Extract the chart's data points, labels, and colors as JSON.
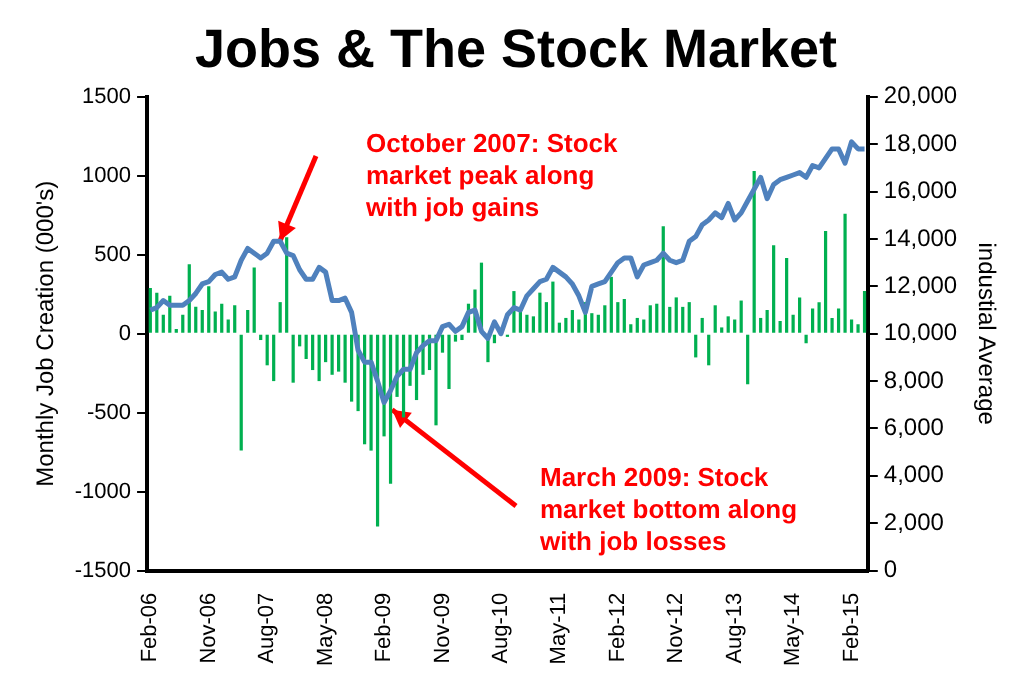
{
  "chart_data": {
    "type": "bar",
    "title": "Jobs & The Stock Market",
    "ylabel": "Monthly Job Creation (000's)",
    "y2label": "industial Average",
    "categories": [
      "Feb-06",
      null,
      null,
      null,
      null,
      null,
      null,
      null,
      null,
      "Nov-06",
      null,
      null,
      null,
      null,
      null,
      null,
      null,
      null,
      "Aug-07",
      null,
      null,
      null,
      null,
      null,
      null,
      null,
      null,
      "May-08",
      null,
      null,
      null,
      null,
      null,
      null,
      null,
      null,
      "Feb-09",
      null,
      null,
      null,
      null,
      null,
      null,
      null,
      null,
      "Nov-09",
      null,
      null,
      null,
      null,
      null,
      null,
      null,
      null,
      "Aug-10",
      null,
      null,
      null,
      null,
      null,
      null,
      null,
      null,
      "May-11",
      null,
      null,
      null,
      null,
      null,
      null,
      null,
      null,
      "Feb-12",
      null,
      null,
      null,
      null,
      null,
      null,
      null,
      null,
      "Nov-12",
      null,
      null,
      null,
      null,
      null,
      null,
      null,
      null,
      "Aug-13",
      null,
      null,
      null,
      null,
      null,
      null,
      null,
      null,
      "May-14",
      null,
      null,
      null,
      null,
      null,
      null,
      null,
      null,
      "Feb-15",
      null,
      null
    ],
    "series": [
      {
        "color": "#00b050",
        "values": [
          290,
          260,
          120,
          240,
          30,
          120,
          440,
          170,
          150,
          300,
          140,
          190,
          90,
          180,
          -740,
          150,
          420,
          -40,
          -200,
          -300,
          200,
          610,
          -310,
          -80,
          -160,
          -230,
          -300,
          -180,
          -260,
          -240,
          -310,
          -430,
          -490,
          -700,
          -740,
          -1220,
          -650,
          -950,
          -400,
          -530,
          -330,
          -420,
          -260,
          -230,
          -580,
          -120,
          -350,
          -50,
          -40,
          190,
          280,
          450,
          -180,
          -60,
          null,
          -20,
          270,
          140,
          120,
          110,
          260,
          200,
          330,
          70,
          100,
          150,
          90,
          200,
          130,
          120,
          180,
          360,
          200,
          220,
          60,
          100,
          90,
          180,
          190,
          680,
          170,
          230,
          170,
          200,
          -150,
          100,
          -200,
          180,
          40,
          110,
          90,
          210,
          -320,
          1030,
          100,
          150,
          560,
          80,
          480,
          120,
          230,
          -60,
          160,
          200,
          650,
          100,
          160,
          760,
          90,
          60,
          270
        ]
      },
      {
        "type": "line",
        "axis": "y2",
        "color": "#4f81bd",
        "values": [
          11000,
          11100,
          11400,
          11200,
          11200,
          11200,
          11400,
          11700,
          12100,
          12200,
          12500,
          12600,
          12300,
          12400,
          13100,
          13600,
          13400,
          13200,
          13400,
          13900,
          13900,
          13400,
          13300,
          12700,
          12300,
          12300,
          12800,
          12600,
          11400,
          11400,
          11500,
          10900,
          9300,
          8800,
          8800,
          8000,
          7100,
          7600,
          8200,
          8500,
          8500,
          9200,
          9500,
          9700,
          9700,
          10300,
          10400,
          10100,
          10300,
          10900,
          11000,
          10100,
          9800,
          10500,
          10000,
          10800,
          11100,
          11000,
          11600,
          11900,
          12200,
          12300,
          12800,
          12600,
          12400,
          12100,
          11600,
          10900,
          12000,
          12100,
          12200,
          12600,
          13000,
          13200,
          13200,
          12400,
          12900,
          13000,
          13100,
          13400,
          13100,
          13000,
          13100,
          13900,
          14100,
          14600,
          14800,
          15100,
          14900,
          15500,
          14800,
          15100,
          15600,
          16100,
          16600,
          15700,
          16300,
          16500,
          16600,
          16700,
          16800,
          16600,
          17100,
          17000,
          17400,
          17800,
          17800,
          17200,
          18100,
          17800,
          17800
        ]
      }
    ],
    "ylim": [
      -1500,
      1500
    ],
    "yticks": [
      -1500,
      -1000,
      -500,
      0,
      500,
      1000,
      1500
    ],
    "y2lim": [
      0,
      20000
    ],
    "y2ticks": [
      0,
      {
        "value": 2000,
        "label": "2,000"
      },
      {
        "value": 4000,
        "label": "4,000"
      },
      {
        "value": 6000,
        "label": "6,000"
      },
      {
        "value": 8000,
        "label": "8,000"
      },
      {
        "value": 10000,
        "label": "10,000"
      },
      {
        "value": 12000,
        "label": "12,000"
      },
      {
        "value": 14000,
        "label": "14,000"
      },
      {
        "value": 16000,
        "label": "16,000"
      },
      {
        "value": 18000,
        "label": "18,000"
      },
      {
        "value": 20000,
        "label": "20,000"
      }
    ],
    "grid": false,
    "legend": false,
    "marker": "none",
    "line_style": "solid",
    "annotations": [
      "October 2007: Stock market peak along with job gains",
      {
        "text": "March 2009: Stock market bottom along with job losses",
        "x": "Feb-09",
        "y": -430
      }
    ]
  }
}
